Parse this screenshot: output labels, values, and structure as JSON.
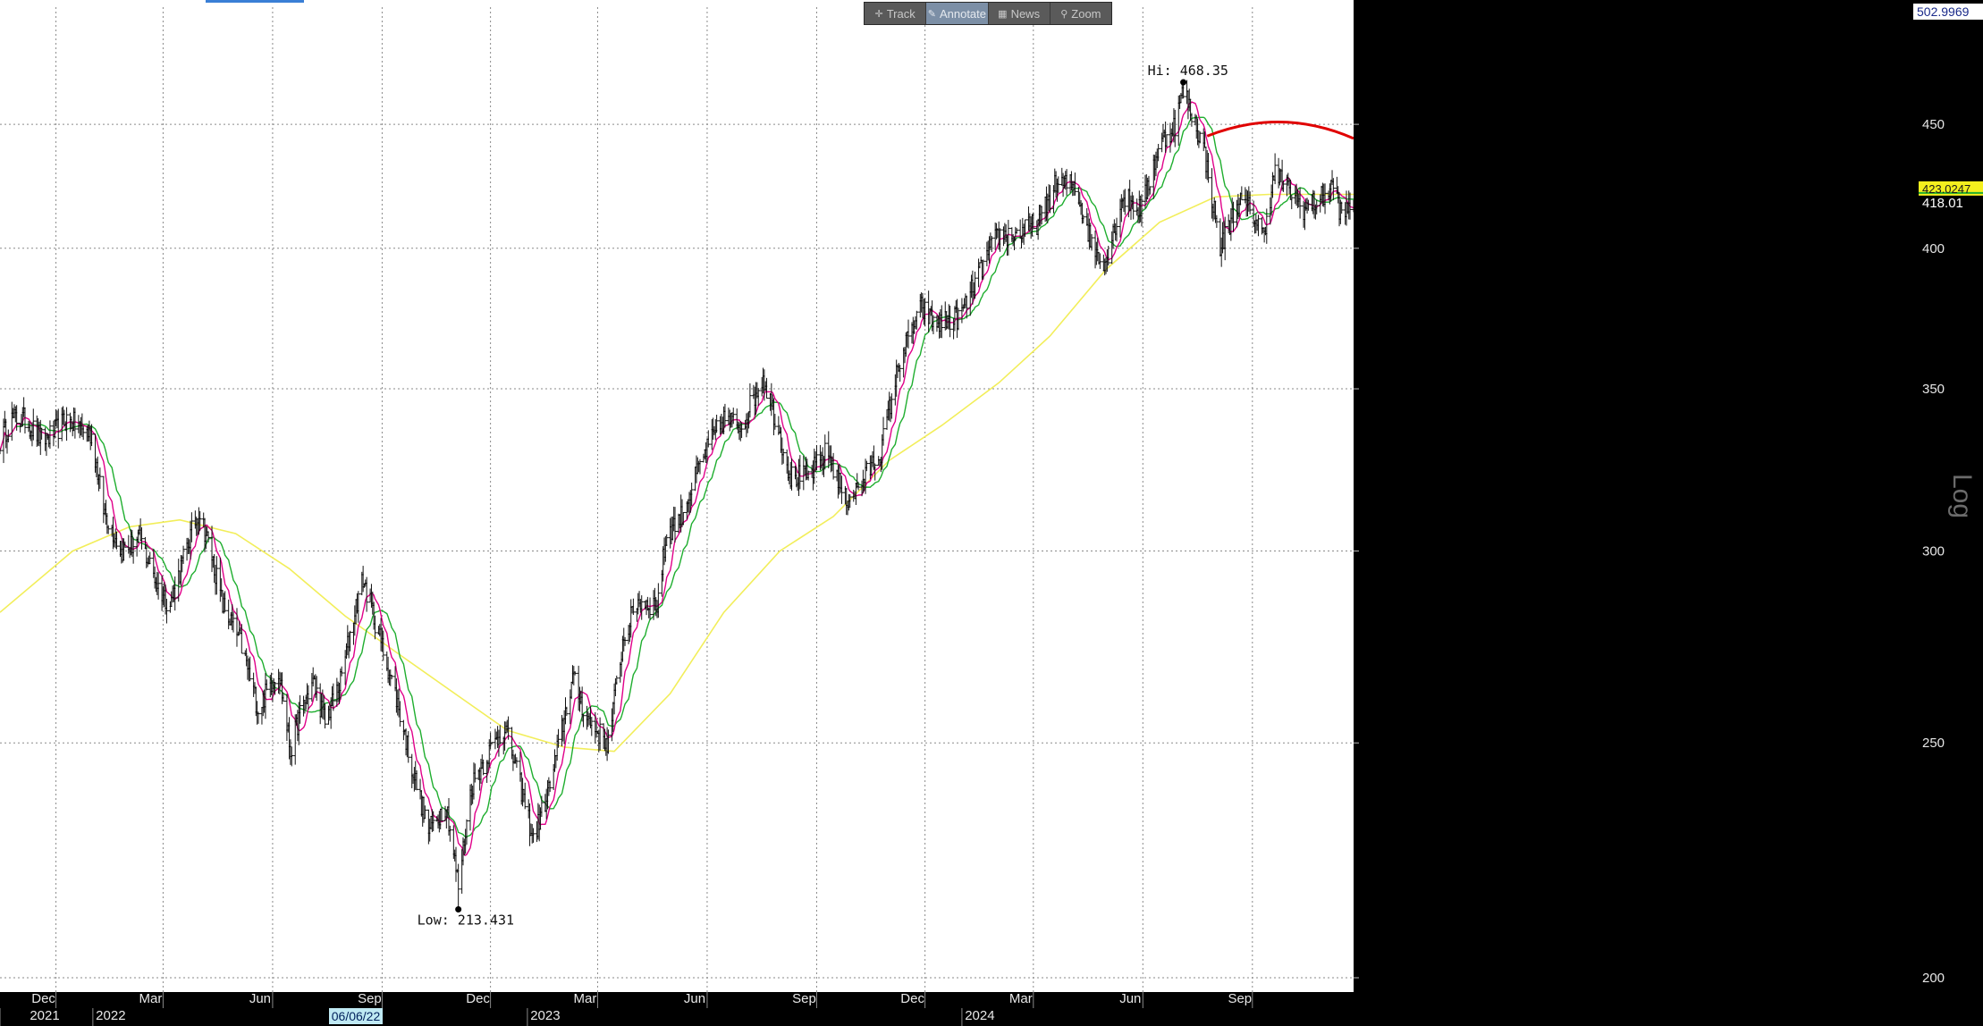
{
  "toolbar": {
    "items": [
      {
        "label": "Track",
        "icon": "crosshair-icon",
        "active": false
      },
      {
        "label": "Annotate",
        "icon": "pencil-icon",
        "active": true
      },
      {
        "label": "News",
        "icon": "news-icon",
        "active": false
      },
      {
        "label": "Zoom",
        "icon": "magnifier-icon",
        "active": false
      }
    ]
  },
  "chart_data": {
    "type": "bar",
    "scale": "log",
    "grid": true,
    "ylim": [
      200,
      502.9969
    ],
    "y_ticks": [
      200,
      250,
      300,
      350,
      400,
      450
    ],
    "axis_top_label": "502.9969",
    "scale_label": "Log",
    "last_price_label": "418.01",
    "price_tag_label": "423.0247",
    "hi_label": "Hi: 468.35",
    "low_label": "Low: 213.431",
    "hi": {
      "date": "2024-07-05",
      "value": 468.35
    },
    "low": {
      "date": "2022-11-04",
      "value": 213.431
    },
    "highlight_date": "06/06/22",
    "x_range": [
      "2021-10-15",
      "2024-11-25"
    ],
    "month_ticks": [
      {
        "date": "2021-12-01",
        "label": "Dec"
      },
      {
        "date": "2022-03-01",
        "label": "Mar"
      },
      {
        "date": "2022-06-01",
        "label": "Jun"
      },
      {
        "date": "2022-09-01",
        "label": "Sep"
      },
      {
        "date": "2022-12-01",
        "label": "Dec"
      },
      {
        "date": "2023-03-01",
        "label": "Mar"
      },
      {
        "date": "2023-06-01",
        "label": "Jun"
      },
      {
        "date": "2023-09-01",
        "label": "Sep"
      },
      {
        "date": "2023-12-01",
        "label": "Dec"
      },
      {
        "date": "2024-03-01",
        "label": "Mar"
      },
      {
        "date": "2024-06-01",
        "label": "Jun"
      },
      {
        "date": "2024-09-01",
        "label": "Sep"
      }
    ],
    "year_ticks": [
      {
        "date": "2021-10-15",
        "label": "2021"
      },
      {
        "date": "2022-01-01",
        "label": "2022"
      },
      {
        "date": "2023-01-01",
        "label": "2023"
      },
      {
        "date": "2024-01-01",
        "label": "2024"
      }
    ],
    "price_path": [
      [
        "2021-10-15",
        333
      ],
      [
        "2021-10-25",
        340
      ],
      [
        "2021-11-05",
        340
      ],
      [
        "2021-11-20",
        333
      ],
      [
        "2021-11-30",
        336
      ],
      [
        "2021-12-10",
        340
      ],
      [
        "2021-12-31",
        335
      ],
      [
        "2022-01-10",
        312
      ],
      [
        "2022-01-25",
        300
      ],
      [
        "2022-02-10",
        303
      ],
      [
        "2022-02-25",
        290
      ],
      [
        "2022-03-07",
        285
      ],
      [
        "2022-03-20",
        300
      ],
      [
        "2022-03-31",
        312
      ],
      [
        "2022-04-10",
        300
      ],
      [
        "2022-04-20",
        285
      ],
      [
        "2022-05-05",
        275
      ],
      [
        "2022-05-20",
        258
      ],
      [
        "2022-05-31",
        265
      ],
      [
        "2022-06-06",
        268
      ],
      [
        "2022-06-16",
        248
      ],
      [
        "2022-06-25",
        258
      ],
      [
        "2022-07-05",
        265
      ],
      [
        "2022-07-15",
        255
      ],
      [
        "2022-07-28",
        265
      ],
      [
        "2022-08-10",
        285
      ],
      [
        "2022-08-16",
        292
      ],
      [
        "2022-08-31",
        275
      ],
      [
        "2022-09-12",
        262
      ],
      [
        "2022-09-28",
        242
      ],
      [
        "2022-10-10",
        230
      ],
      [
        "2022-10-25",
        236
      ],
      [
        "2022-11-04",
        218
      ],
      [
        "2022-11-15",
        240
      ],
      [
        "2022-11-30",
        248
      ],
      [
        "2022-12-13",
        254
      ],
      [
        "2022-12-28",
        238
      ],
      [
        "2023-01-06",
        228
      ],
      [
        "2023-01-20",
        240
      ],
      [
        "2023-02-01",
        256
      ],
      [
        "2023-02-08",
        266
      ],
      [
        "2023-02-20",
        256
      ],
      [
        "2023-03-03",
        252
      ],
      [
        "2023-03-10",
        250
      ],
      [
        "2023-03-22",
        275
      ],
      [
        "2023-04-03",
        286
      ],
      [
        "2023-04-20",
        285
      ],
      [
        "2023-04-28",
        305
      ],
      [
        "2023-05-10",
        310
      ],
      [
        "2023-05-31",
        330
      ],
      [
        "2023-06-15",
        340
      ],
      [
        "2023-06-30",
        338
      ],
      [
        "2023-07-18",
        354
      ],
      [
        "2023-07-25",
        345
      ],
      [
        "2023-08-10",
        322
      ],
      [
        "2023-08-25",
        322
      ],
      [
        "2023-09-10",
        330
      ],
      [
        "2023-09-25",
        315
      ],
      [
        "2023-10-05",
        318
      ],
      [
        "2023-10-25",
        330
      ],
      [
        "2023-11-10",
        360
      ],
      [
        "2023-11-28",
        378
      ],
      [
        "2023-12-10",
        372
      ],
      [
        "2023-12-31",
        375
      ],
      [
        "2024-01-15",
        390
      ],
      [
        "2024-01-31",
        405
      ],
      [
        "2024-02-15",
        405
      ],
      [
        "2024-03-05",
        410
      ],
      [
        "2024-03-20",
        425
      ],
      [
        "2024-04-05",
        425
      ],
      [
        "2024-04-20",
        400
      ],
      [
        "2024-05-01",
        395
      ],
      [
        "2024-05-15",
        420
      ],
      [
        "2024-05-31",
        415
      ],
      [
        "2024-06-14",
        440
      ],
      [
        "2024-06-28",
        450
      ],
      [
        "2024-07-05",
        465
      ],
      [
        "2024-07-22",
        440
      ],
      [
        "2024-08-05",
        400
      ],
      [
        "2024-08-20",
        418
      ],
      [
        "2024-08-31",
        415
      ],
      [
        "2024-09-10",
        405
      ],
      [
        "2024-09-20",
        430
      ],
      [
        "2024-10-01",
        423
      ],
      [
        "2024-10-15",
        415
      ],
      [
        "2024-10-30",
        420
      ],
      [
        "2024-11-08",
        425
      ],
      [
        "2024-11-15",
        412
      ],
      [
        "2024-11-25",
        418
      ]
    ],
    "series": [
      {
        "key": "ma_fast",
        "color": "#e0008a"
      },
      {
        "key": "ma_medium",
        "color": "#1fae2f"
      },
      {
        "key": "ma_long",
        "color": "#f2ee5a",
        "points": [
          [
            "2021-10-15",
            283
          ],
          [
            "2021-12-15",
            300
          ],
          [
            "2022-02-01",
            307
          ],
          [
            "2022-03-15",
            309
          ],
          [
            "2022-05-01",
            305
          ],
          [
            "2022-06-15",
            295
          ],
          [
            "2022-08-01",
            282
          ],
          [
            "2022-09-15",
            272
          ],
          [
            "2022-11-01",
            262
          ],
          [
            "2022-12-15",
            253
          ],
          [
            "2023-02-01",
            249
          ],
          [
            "2023-03-15",
            248
          ],
          [
            "2023-05-01",
            262
          ],
          [
            "2023-06-15",
            283
          ],
          [
            "2023-08-01",
            300
          ],
          [
            "2023-09-15",
            310
          ],
          [
            "2023-11-01",
            327
          ],
          [
            "2023-12-15",
            338
          ],
          [
            "2024-02-01",
            352
          ],
          [
            "2024-03-15",
            368
          ],
          [
            "2024-05-01",
            392
          ],
          [
            "2024-06-15",
            410
          ],
          [
            "2024-08-01",
            420
          ],
          [
            "2024-09-15",
            421
          ],
          [
            "2024-11-25",
            421
          ]
        ]
      }
    ],
    "annotation_arc": {
      "color": "#e00000",
      "start": [
        "2024-07-25",
        445
      ],
      "peak": [
        "2024-09-25",
        451
      ],
      "end": [
        "2024-11-25",
        444
      ]
    }
  }
}
